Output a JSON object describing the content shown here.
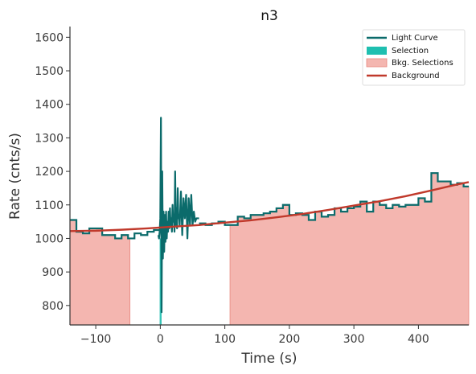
{
  "chart_data": {
    "type": "line",
    "title": "n3",
    "xlabel": "Time (s)",
    "ylabel": "Rate (cnts/s)",
    "xlim": [
      -140,
      478
    ],
    "ylim": [
      742,
      1632
    ],
    "xticks": [
      -100,
      0,
      100,
      200,
      300,
      400
    ],
    "xtick_labels": [
      "−100",
      "0",
      "100",
      "200",
      "300",
      "400"
    ],
    "yticks": [
      800,
      900,
      1000,
      1100,
      1200,
      1300,
      1400,
      1500,
      1600
    ],
    "ytick_labels": [
      "800",
      "900",
      "1000",
      "1100",
      "1200",
      "1300",
      "1400",
      "1500",
      "1600"
    ],
    "legend_position": "top-right",
    "legend": [
      "Light Curve",
      "Selection",
      "Bkg. Selections",
      "Background"
    ],
    "colors": {
      "light_curve": "#0b6b6b",
      "selection": "#1fbfb0",
      "bkg_selection": "#f4b6b0",
      "bkg_selection_edge": "#e8877e",
      "background": "#c0392b",
      "axes": "#333333"
    },
    "light_curve": {
      "name": "Light Curve",
      "left_bins": {
        "edges": [
          -140,
          -130,
          -120,
          -110,
          -100,
          -90,
          -80,
          -70,
          -60,
          -50,
          -40,
          -30,
          -20,
          -10,
          0
        ],
        "values": [
          1055,
          1020,
          1015,
          1030,
          1030,
          1010,
          1010,
          1000,
          1010,
          1000,
          1015,
          1010,
          1020,
          1025
        ]
      },
      "burst": {
        "x": [
          -3,
          -2,
          -1,
          0,
          1,
          2,
          3,
          4,
          5,
          6,
          7,
          8,
          9,
          10,
          11,
          12,
          13,
          14,
          15,
          16,
          17,
          18,
          19,
          20,
          21,
          22,
          23,
          24,
          25,
          26,
          27,
          28,
          29,
          30,
          32,
          34,
          36,
          38,
          40,
          42,
          44,
          46,
          48,
          50,
          52,
          54,
          56,
          58,
          60
        ],
        "y": [
          1010,
          1000,
          1020,
          1060,
          1360,
          780,
          1200,
          940,
          1080,
          960,
          1070,
          990,
          1080,
          1000,
          1050,
          1020,
          1080,
          1030,
          1090,
          1040,
          1060,
          1020,
          1100,
          1050,
          1070,
          1020,
          1200,
          1040,
          1090,
          1030,
          1150,
          1060,
          1070,
          1040,
          1140,
          1010,
          1120,
          1060,
          1130,
          1000,
          1120,
          1040,
          1130,
          1040,
          1080,
          1050,
          1060,
          1060,
          1060
        ]
      },
      "right_bins": {
        "edges": [
          60,
          70,
          80,
          90,
          100,
          110,
          120,
          130,
          140,
          150,
          160,
          170,
          180,
          190,
          200,
          210,
          220,
          230,
          240,
          250,
          260,
          270,
          280,
          290,
          300,
          310,
          320,
          330,
          340,
          350,
          360,
          370,
          380,
          390,
          400,
          410,
          420,
          430,
          440,
          450,
          460,
          470,
          478
        ],
        "values": [
          1045,
          1040,
          1045,
          1050,
          1040,
          1040,
          1065,
          1060,
          1070,
          1070,
          1075,
          1080,
          1090,
          1100,
          1070,
          1075,
          1070,
          1055,
          1080,
          1065,
          1070,
          1090,
          1080,
          1090,
          1095,
          1110,
          1080,
          1110,
          1100,
          1090,
          1100,
          1095,
          1100,
          1100,
          1120,
          1110,
          1195,
          1170,
          1170,
          1160,
          1165,
          1155
        ]
      }
    },
    "selection": {
      "name": "Selection",
      "range": [
        -1,
        2
      ]
    },
    "bkg_selections": {
      "name": "Bkg. Selections",
      "ranges": [
        [
          -140,
          -47
        ],
        [
          108,
          478
        ]
      ]
    },
    "background": {
      "name": "Background",
      "fit": {
        "x": [
          -140,
          -100,
          -60,
          -20,
          20,
          60,
          100,
          140,
          180,
          220,
          260,
          300,
          340,
          380,
          420,
          460,
          478
        ],
        "y": [
          1022,
          1023,
          1026,
          1030,
          1035,
          1040,
          1047,
          1054,
          1063,
          1073,
          1085,
          1098,
          1111,
          1126,
          1143,
          1161,
          1168
        ]
      }
    }
  }
}
